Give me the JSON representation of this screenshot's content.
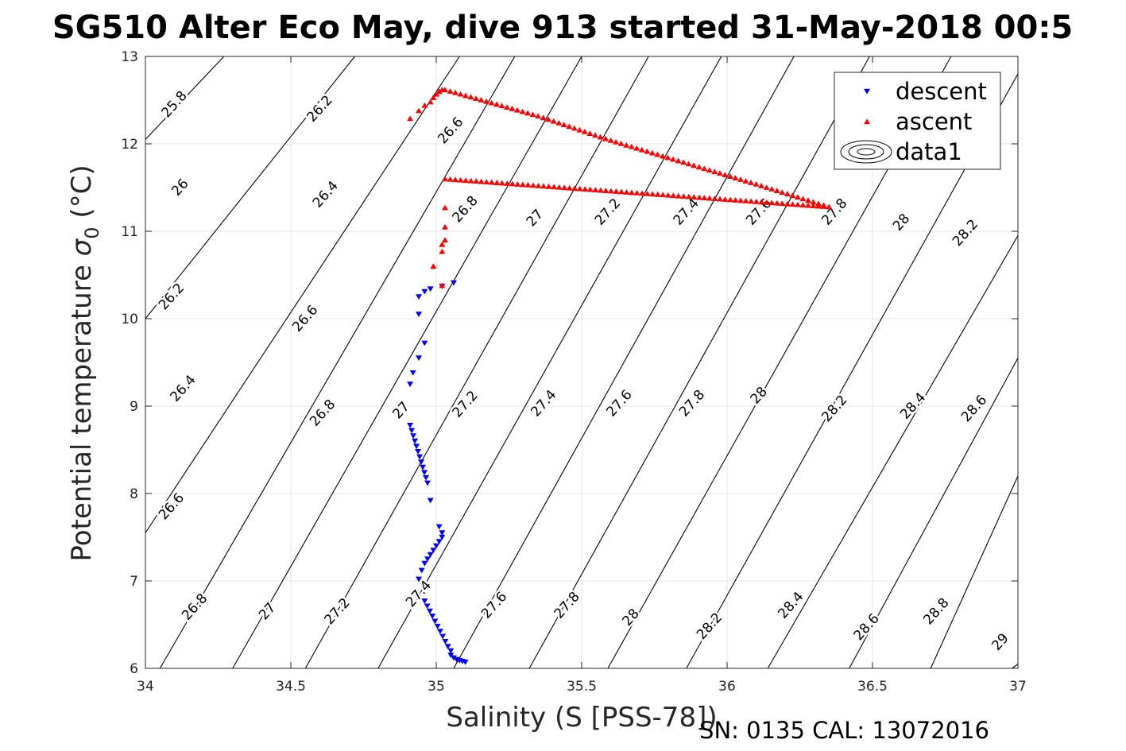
{
  "chart_data": {
    "type": "scatter",
    "title": "SG510 Alter Eco May, dive 913 started 31-May-2018 00:5",
    "xlabel": "Salinity (S [PSS-78])",
    "ylabel_main": "Potential temperature ",
    "ylabel_symbol": "σ",
    "ylabel_sub": "0",
    "ylabel_unit": " (°C)",
    "xlim": [
      34,
      37
    ],
    "ylim": [
      6,
      13
    ],
    "xticks": [
      34,
      34.5,
      35,
      35.5,
      36,
      36.5,
      37
    ],
    "xtick_labels": [
      "34",
      "34.5",
      "35",
      "35.5",
      "36",
      "36.5",
      "37"
    ],
    "yticks": [
      6,
      7,
      8,
      9,
      10,
      11,
      12,
      13
    ],
    "ytick_labels": [
      "6",
      "7",
      "8",
      "9",
      "10",
      "11",
      "12",
      "13"
    ],
    "grid": true,
    "legend_position": "top-right",
    "footer_note": "SN: 0135  CAL: 13072016",
    "contour_levels": [
      {
        "level": 25.8,
        "x0": 34.0,
        "y0": 12.05,
        "x1": 34.27,
        "y1": 13.0
      },
      {
        "level": 26.2,
        "x0": 34.0,
        "y0": 10.0,
        "x1": 34.72,
        "y1": 13.0
      },
      {
        "level": 26.6,
        "x0": 34.0,
        "y0": 7.55,
        "x1": 35.08,
        "y1": 13.0
      },
      {
        "level": 26.8,
        "x0": 34.05,
        "y0": 6.0,
        "x1": 35.27,
        "y1": 13.0
      },
      {
        "level": 27.0,
        "x0": 34.3,
        "y0": 6.0,
        "x1": 35.5,
        "y1": 13.0
      },
      {
        "level": 27.2,
        "x0": 34.55,
        "y0": 6.0,
        "x1": 35.73,
        "y1": 13.0
      },
      {
        "level": 27.4,
        "x0": 34.8,
        "y0": 6.0,
        "x1": 35.98,
        "y1": 13.0
      },
      {
        "level": 27.6,
        "x0": 35.06,
        "y0": 6.0,
        "x1": 36.23,
        "y1": 13.0
      },
      {
        "level": 27.8,
        "x0": 35.32,
        "y0": 6.0,
        "x1": 36.49,
        "y1": 13.0
      },
      {
        "level": 28.0,
        "x0": 35.59,
        "y0": 6.0,
        "x1": 36.77,
        "y1": 13.0
      },
      {
        "level": 28.2,
        "x0": 35.86,
        "y0": 6.0,
        "x1": 37.0,
        "y1": 12.8
      },
      {
        "level": 28.4,
        "x0": 36.14,
        "y0": 6.0,
        "x1": 37.0,
        "y1": 10.95
      },
      {
        "level": 28.6,
        "x0": 36.42,
        "y0": 6.0,
        "x1": 37.0,
        "y1": 9.55
      },
      {
        "level": 28.8,
        "x0": 36.7,
        "y0": 6.0,
        "x1": 37.0,
        "y1": 8.2
      },
      {
        "level": 29.0,
        "x0": 36.98,
        "y0": 6.0,
        "x1": 37.0,
        "y1": 6.05
      }
    ],
    "contour_labels": [
      {
        "text": "25.8",
        "x": 34.1,
        "y": 12.45
      },
      {
        "text": "26",
        "x": 34.12,
        "y": 11.5
      },
      {
        "text": "26.2",
        "x": 34.09,
        "y": 10.25
      },
      {
        "text": "26.4",
        "x": 34.13,
        "y": 9.2
      },
      {
        "text": "26.6",
        "x": 34.09,
        "y": 7.85
      },
      {
        "text": "26.8",
        "x": 34.17,
        "y": 6.7
      },
      {
        "text": "26.2",
        "x": 34.6,
        "y": 12.4
      },
      {
        "text": "26.4",
        "x": 34.62,
        "y": 11.42
      },
      {
        "text": "26.6",
        "x": 34.55,
        "y": 10.0
      },
      {
        "text": "26.8",
        "x": 34.61,
        "y": 8.92
      },
      {
        "text": "27",
        "x": 34.42,
        "y": 6.65
      },
      {
        "text": "26.6",
        "x": 35.05,
        "y": 12.15
      },
      {
        "text": "26.8",
        "x": 35.1,
        "y": 11.25
      },
      {
        "text": "27",
        "x": 34.88,
        "y": 8.95
      },
      {
        "text": "27.2",
        "x": 34.66,
        "y": 6.65
      },
      {
        "text": "27",
        "x": 35.34,
        "y": 11.15
      },
      {
        "text": "27.2",
        "x": 35.1,
        "y": 9.02
      },
      {
        "text": "27.4",
        "x": 34.94,
        "y": 6.85
      },
      {
        "text": "27.2",
        "x": 35.59,
        "y": 11.22
      },
      {
        "text": "27.4",
        "x": 35.37,
        "y": 9.03
      },
      {
        "text": "27.6",
        "x": 35.2,
        "y": 6.72
      },
      {
        "text": "27.4",
        "x": 35.86,
        "y": 11.22
      },
      {
        "text": "27.6",
        "x": 35.63,
        "y": 9.03
      },
      {
        "text": "27.8",
        "x": 35.45,
        "y": 6.72
      },
      {
        "text": "27.6",
        "x": 36.11,
        "y": 11.22
      },
      {
        "text": "27.8",
        "x": 35.88,
        "y": 9.03
      },
      {
        "text": "28",
        "x": 35.67,
        "y": 6.58
      },
      {
        "text": "27.8",
        "x": 36.37,
        "y": 11.22
      },
      {
        "text": "28",
        "x": 36.11,
        "y": 9.12
      },
      {
        "text": "28.2",
        "x": 35.94,
        "y": 6.48
      },
      {
        "text": "28",
        "x": 36.6,
        "y": 11.1
      },
      {
        "text": "28.2",
        "x": 36.37,
        "y": 8.97
      },
      {
        "text": "28.4",
        "x": 36.22,
        "y": 6.72
      },
      {
        "text": "28.2",
        "x": 36.82,
        "y": 10.98
      },
      {
        "text": "28.4",
        "x": 36.64,
        "y": 9.0
      },
      {
        "text": "28.6",
        "x": 36.48,
        "y": 6.47
      },
      {
        "text": "28.6",
        "x": 36.85,
        "y": 8.97
      },
      {
        "text": "28.8",
        "x": 36.72,
        "y": 6.65
      },
      {
        "text": "29",
        "x": 36.94,
        "y": 6.3
      }
    ],
    "series": [
      {
        "name": "descent",
        "color": "#0000ff",
        "marker": "triangle-down",
        "points": [
          [
            35.06,
            10.41
          ],
          [
            35.02,
            10.37
          ],
          [
            34.98,
            10.34
          ],
          [
            34.96,
            10.31
          ],
          [
            34.94,
            10.25
          ],
          [
            34.94,
            10.05
          ],
          [
            34.96,
            9.72
          ],
          [
            34.94,
            9.55
          ],
          [
            34.92,
            9.38
          ],
          [
            34.91,
            9.25
          ],
          [
            34.91,
            8.78
          ],
          [
            34.97,
            8.12
          ],
          [
            34.98,
            7.92
          ],
          [
            35.01,
            7.62
          ],
          [
            35.02,
            7.55
          ],
          [
            35.02,
            7.5
          ],
          [
            35.01,
            7.45
          ],
          [
            35.0,
            7.4
          ],
          [
            34.99,
            7.35
          ],
          [
            34.98,
            7.3
          ],
          [
            34.97,
            7.25
          ],
          [
            34.96,
            7.2
          ],
          [
            34.95,
            7.12
          ],
          [
            34.94,
            7.02
          ],
          [
            34.96,
            6.77
          ],
          [
            35.04,
            6.25
          ],
          [
            35.05,
            6.2
          ],
          [
            35.05,
            6.15
          ],
          [
            35.06,
            6.12
          ],
          [
            35.07,
            6.1
          ],
          [
            35.08,
            6.09
          ],
          [
            35.09,
            6.08
          ],
          [
            35.1,
            6.07
          ]
        ]
      },
      {
        "name": "ascent",
        "color": "#ff0000",
        "marker": "triangle-up",
        "points": [
          [
            34.91,
            12.29
          ],
          [
            34.94,
            12.38
          ],
          [
            34.96,
            12.44
          ],
          [
            34.98,
            12.48
          ],
          [
            34.99,
            12.53
          ],
          [
            35.0,
            12.57
          ],
          [
            35.01,
            12.6
          ],
          [
            35.02,
            12.62
          ],
          [
            35.03,
            12.62
          ],
          [
            35.35,
            12.32
          ],
          [
            35.6,
            12.04
          ],
          [
            35.85,
            11.79
          ],
          [
            36.1,
            11.54
          ],
          [
            36.35,
            11.28
          ],
          [
            35.03,
            11.6
          ],
          [
            35.03,
            11.27
          ],
          [
            35.03,
            11.05
          ],
          [
            35.03,
            10.9
          ],
          [
            35.02,
            10.85
          ],
          [
            35.02,
            10.77
          ],
          [
            34.99,
            10.6
          ],
          [
            35.02,
            10.38
          ]
        ]
      },
      {
        "name": "data1",
        "color": "#000000",
        "marker": "contour"
      }
    ]
  }
}
